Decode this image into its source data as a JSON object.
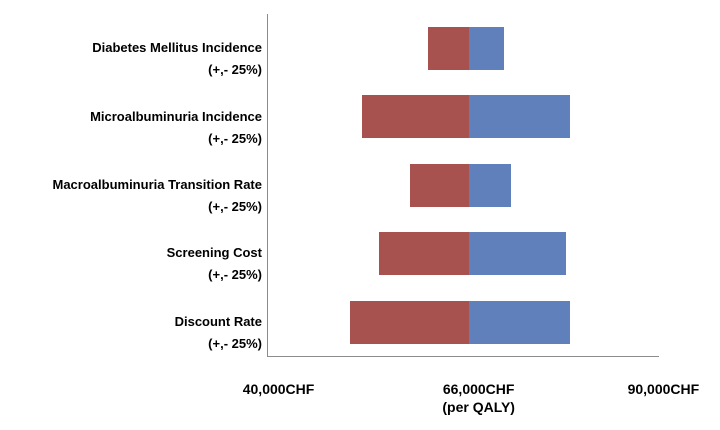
{
  "chart_data": {
    "type": "bar",
    "subtype": "tornado",
    "orientation": "horizontal",
    "title": "",
    "unit": "CHF per QALY",
    "grid": false,
    "legend": "none",
    "axis": {
      "min": 38500,
      "max": 89300,
      "ticks": [
        {
          "value": 40000,
          "label": "40,000CHF",
          "sublabel": ""
        },
        {
          "value": 66000,
          "label": "66,000CHF",
          "sublabel": "(per QALY)"
        },
        {
          "value": 90000,
          "label": "90,000CHF",
          "sublabel": ""
        }
      ]
    },
    "pivot_value": 64600,
    "bars": [
      {
        "label": "Diabetes Mellitus Incidence",
        "sublabel": "(+,- 25%)",
        "low": 59300,
        "high": 69200
      },
      {
        "label": "Microalbuminuria Incidence",
        "sublabel": "(+,- 25%)",
        "low": 50700,
        "high": 77700
      },
      {
        "label": "Macroalbuminuria Transition Rate",
        "sublabel": "(+,- 25%)",
        "low": 56900,
        "high": 70100
      },
      {
        "label": "Screening Cost",
        "sublabel": "(+,- 25%)",
        "low": 52900,
        "high": 77200
      },
      {
        "label": "Discount Rate",
        "sublabel": "(+,- 25%)",
        "low": 49200,
        "high": 77700
      }
    ],
    "colors": {
      "low_segment": "#A85250",
      "high_segment": "#6080BC",
      "axis_line": "#8c8c8c",
      "background": "#ffffff"
    }
  }
}
